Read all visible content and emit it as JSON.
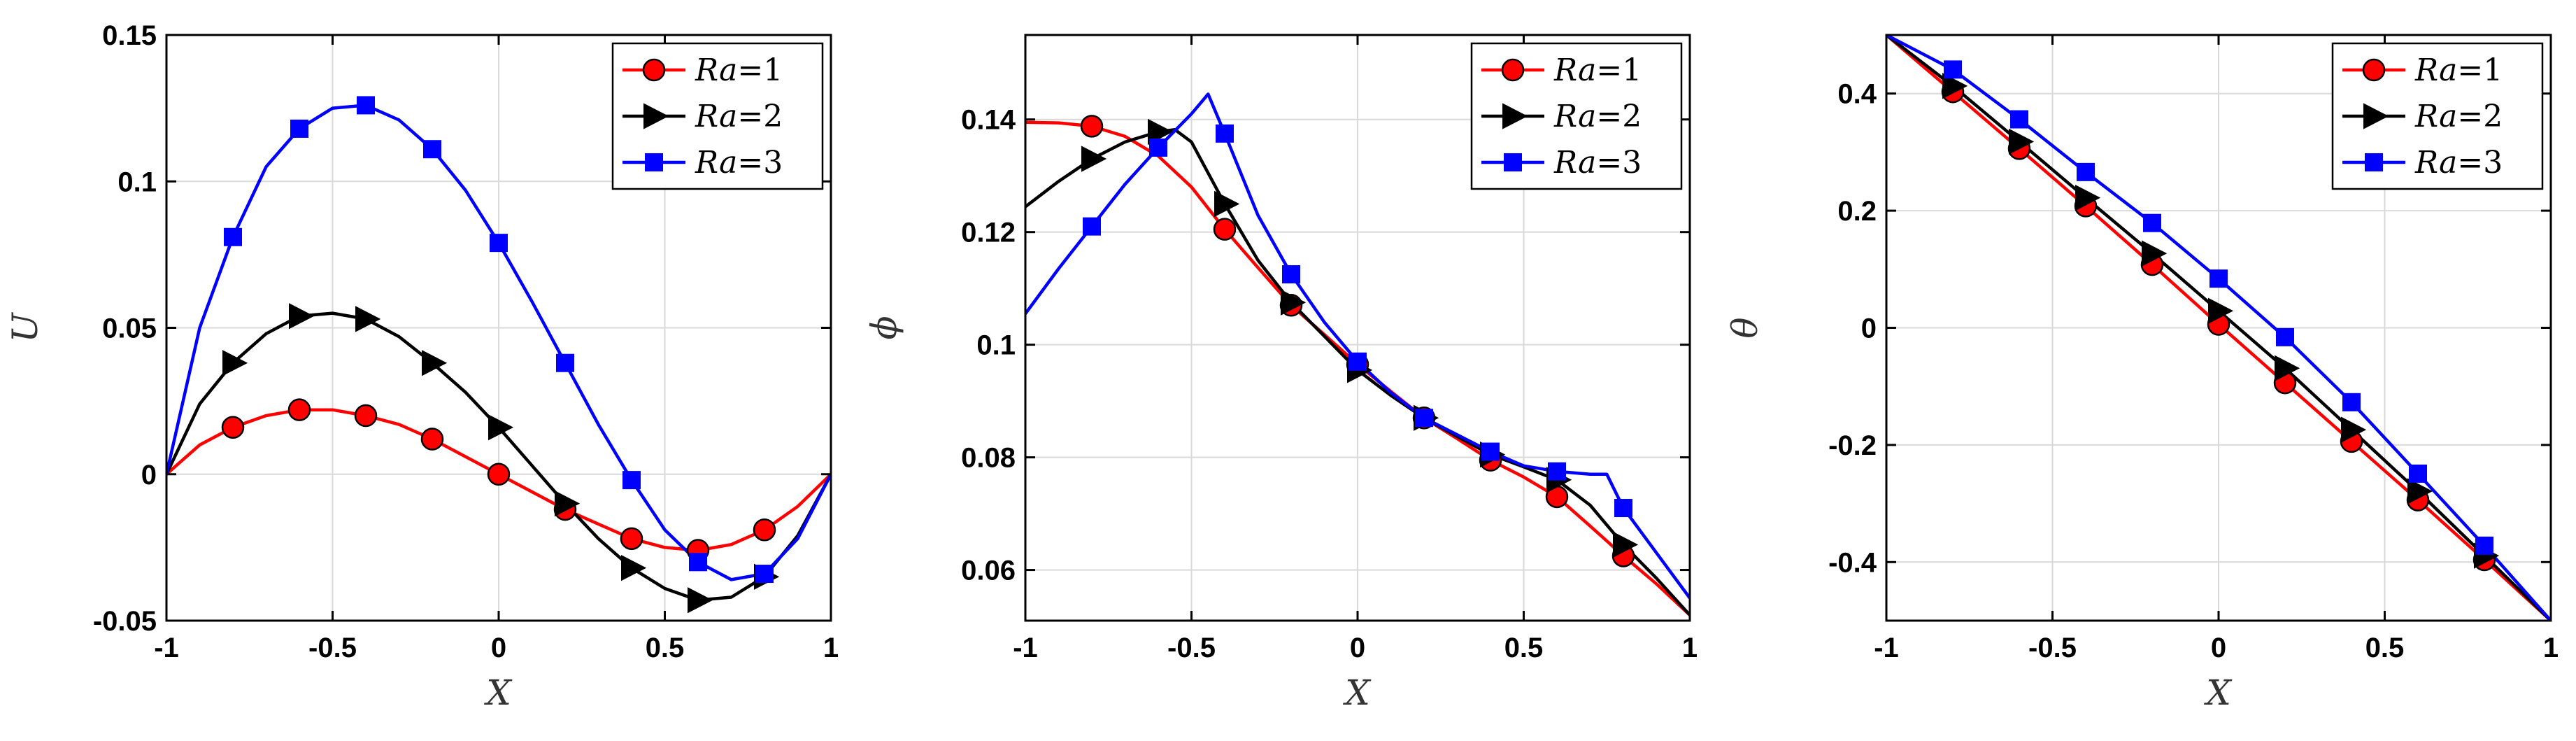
{
  "chart_data": [
    {
      "type": "line",
      "xlabel": "X",
      "ylabel": "U",
      "xlim": [
        -1,
        1
      ],
      "ylim": [
        -0.05,
        0.15
      ],
      "xticks": [
        -1,
        -0.5,
        0,
        0.5,
        1
      ],
      "xtick_labels": [
        "-1",
        "-0.5",
        "0",
        "0.5",
        "1"
      ],
      "yticks": [
        -0.05,
        0,
        0.05,
        0.1,
        0.15
      ],
      "ytick_labels": [
        "-0.05",
        "0",
        "0.05",
        "0.1",
        "0.15"
      ],
      "grid": true,
      "legend_position": "top-right",
      "series": [
        {
          "name": "Ra=1",
          "label_var": "Ra",
          "label_value": "=1",
          "color": "#ff0000",
          "marker": "circle",
          "x": [
            -1,
            -0.9,
            -0.8,
            -0.7,
            -0.6,
            -0.5,
            -0.4,
            -0.3,
            -0.2,
            -0.1,
            0,
            0.1,
            0.2,
            0.3,
            0.4,
            0.5,
            0.6,
            0.7,
            0.8,
            0.9,
            1
          ],
          "y": [
            0,
            0.01,
            0.016,
            0.02,
            0.022,
            0.022,
            0.02,
            0.017,
            0.012,
            0.006,
            0.0,
            -0.006,
            -0.012,
            -0.017,
            -0.022,
            -0.025,
            -0.026,
            -0.024,
            -0.019,
            -0.011,
            0
          ],
          "marker_x": [
            -0.8,
            -0.6,
            -0.4,
            -0.2,
            0,
            0.2,
            0.4,
            0.6,
            0.8
          ],
          "marker_y": [
            0.016,
            0.022,
            0.02,
            0.012,
            0.0,
            -0.012,
            -0.022,
            -0.026,
            -0.019
          ]
        },
        {
          "name": "Ra=2",
          "label_var": "Ra",
          "label_value": "=2",
          "color": "#000000",
          "marker": "triangle-right",
          "x": [
            -1,
            -0.9,
            -0.8,
            -0.7,
            -0.6,
            -0.5,
            -0.4,
            -0.3,
            -0.2,
            -0.1,
            0,
            0.1,
            0.2,
            0.3,
            0.4,
            0.5,
            0.6,
            0.7,
            0.8,
            0.9,
            1
          ],
          "y": [
            0,
            0.024,
            0.038,
            0.048,
            0.054,
            0.055,
            0.053,
            0.047,
            0.038,
            0.028,
            0.016,
            0.003,
            -0.01,
            -0.022,
            -0.032,
            -0.039,
            -0.043,
            -0.042,
            -0.035,
            -0.021,
            0
          ],
          "marker_x": [
            -0.8,
            -0.6,
            -0.4,
            -0.2,
            0,
            0.2,
            0.4,
            0.6,
            0.8
          ],
          "marker_y": [
            0.038,
            0.054,
            0.053,
            0.038,
            0.016,
            -0.01,
            -0.032,
            -0.043,
            -0.035
          ]
        },
        {
          "name": "Ra=3",
          "label_var": "Ra",
          "label_value": "=3",
          "color": "#0000ff",
          "marker": "square",
          "x": [
            -1,
            -0.9,
            -0.8,
            -0.7,
            -0.6,
            -0.5,
            -0.4,
            -0.3,
            -0.2,
            -0.1,
            0,
            0.1,
            0.2,
            0.3,
            0.4,
            0.5,
            0.6,
            0.7,
            0.8,
            0.9,
            1
          ],
          "y": [
            0,
            0.05,
            0.081,
            0.105,
            0.118,
            0.125,
            0.126,
            0.121,
            0.111,
            0.097,
            0.079,
            0.059,
            0.038,
            0.017,
            -0.002,
            -0.019,
            -0.03,
            -0.036,
            -0.034,
            -0.022,
            0
          ],
          "marker_x": [
            -0.8,
            -0.6,
            -0.4,
            -0.2,
            0,
            0.2,
            0.4,
            0.6,
            0.8
          ],
          "marker_y": [
            0.081,
            0.118,
            0.126,
            0.111,
            0.079,
            0.038,
            -0.002,
            -0.03,
            -0.034
          ]
        }
      ]
    },
    {
      "type": "line",
      "xlabel": "X",
      "ylabel": "ϕ",
      "xlim": [
        -1,
        1
      ],
      "ylim": [
        0.051,
        0.155
      ],
      "xticks": [
        -1,
        -0.5,
        0,
        0.5,
        1
      ],
      "xtick_labels": [
        "-1",
        "-0.5",
        "0",
        "0.5",
        "1"
      ],
      "yticks": [
        0.06,
        0.08,
        0.1,
        0.12,
        0.14
      ],
      "ytick_labels": [
        "0.06",
        "0.08",
        "0.1",
        "0.12",
        "0.14"
      ],
      "grid": true,
      "legend_position": "top-right",
      "series": [
        {
          "name": "Ra=1",
          "label_var": "Ra",
          "label_value": "=1",
          "color": "#ff0000",
          "marker": "circle",
          "x": [
            -1,
            -0.9,
            -0.8,
            -0.7,
            -0.6,
            -0.5,
            -0.4,
            -0.3,
            -0.2,
            -0.1,
            0,
            0.1,
            0.2,
            0.3,
            0.4,
            0.5,
            0.6,
            0.7,
            0.8,
            0.9,
            1
          ],
          "y": [
            0.1395,
            0.1394,
            0.1388,
            0.137,
            0.1335,
            0.128,
            0.1205,
            0.1137,
            0.107,
            0.1018,
            0.0965,
            0.0917,
            0.087,
            0.0833,
            0.0795,
            0.0765,
            0.073,
            0.0678,
            0.0625,
            0.0575,
            0.052
          ],
          "marker_x": [
            -0.8,
            -0.4,
            -0.2,
            0,
            0.2,
            0.4,
            0.6,
            0.8
          ],
          "marker_y": [
            0.1388,
            0.1205,
            0.107,
            0.0965,
            0.087,
            0.0795,
            0.073,
            0.0625
          ]
        },
        {
          "name": "Ra=2",
          "label_var": "Ra",
          "label_value": "=2",
          "color": "#000000",
          "marker": "triangle-right",
          "x": [
            -1,
            -0.9,
            -0.8,
            -0.7,
            -0.6,
            -0.55,
            -0.5,
            -0.4,
            -0.3,
            -0.2,
            -0.1,
            0,
            0.1,
            0.2,
            0.3,
            0.4,
            0.5,
            0.6,
            0.7,
            0.8,
            0.9,
            1
          ],
          "y": [
            0.1245,
            0.129,
            0.133,
            0.136,
            0.1378,
            0.1382,
            0.136,
            0.125,
            0.115,
            0.1075,
            0.1015,
            0.0955,
            0.091,
            0.087,
            0.0837,
            0.0805,
            0.0783,
            0.076,
            0.0715,
            0.0645,
            0.0585,
            0.052
          ],
          "marker_x": [
            -0.8,
            -0.6,
            -0.4,
            -0.2,
            0,
            0.2,
            0.4,
            0.6,
            0.8
          ],
          "marker_y": [
            0.133,
            0.1378,
            0.125,
            0.1075,
            0.0955,
            0.087,
            0.0805,
            0.076,
            0.0645
          ]
        },
        {
          "name": "Ra=3",
          "label_var": "Ra",
          "label_value": "=3",
          "color": "#0000ff",
          "marker": "square",
          "x": [
            -1,
            -0.9,
            -0.8,
            -0.7,
            -0.6,
            -0.5,
            -0.45,
            -0.4,
            -0.3,
            -0.2,
            -0.1,
            0,
            0.1,
            0.2,
            0.3,
            0.4,
            0.5,
            0.6,
            0.7,
            0.75,
            0.8,
            0.9,
            1
          ],
          "y": [
            0.1055,
            0.1135,
            0.121,
            0.1285,
            0.135,
            0.141,
            0.1445,
            0.1375,
            0.123,
            0.1125,
            0.104,
            0.097,
            0.0915,
            0.087,
            0.084,
            0.081,
            0.0785,
            0.0775,
            0.077,
            0.077,
            0.071,
            0.063,
            0.055
          ],
          "marker_x": [
            -0.8,
            -0.6,
            -0.4,
            -0.2,
            0,
            0.2,
            0.4,
            0.6,
            0.8
          ],
          "marker_y": [
            0.121,
            0.135,
            0.1375,
            0.1125,
            0.097,
            0.087,
            0.081,
            0.0775,
            0.071
          ]
        }
      ]
    },
    {
      "type": "line",
      "xlabel": "X",
      "ylabel": "θ",
      "xlim": [
        -1,
        1
      ],
      "ylim": [
        -0.5,
        0.5
      ],
      "xticks": [
        -1,
        -0.5,
        0,
        0.5,
        1
      ],
      "xtick_labels": [
        "-1",
        "-0.5",
        "0",
        "0.5",
        "1"
      ],
      "yticks": [
        -0.4,
        -0.2,
        0,
        0.2,
        0.4
      ],
      "ytick_labels": [
        "-0.4",
        "-0.2",
        "0",
        "0.2",
        "0.4"
      ],
      "grid": true,
      "legend_position": "top-right",
      "series": [
        {
          "name": "Ra=1",
          "label_var": "Ra",
          "label_value": "=1",
          "color": "#ff0000",
          "marker": "circle",
          "x": [
            -1,
            -0.8,
            -0.6,
            -0.4,
            -0.2,
            0,
            0.2,
            0.4,
            0.6,
            0.8,
            1
          ],
          "y": [
            0.5,
            0.403,
            0.306,
            0.208,
            0.108,
            0.006,
            -0.094,
            -0.194,
            -0.294,
            -0.396,
            -0.5
          ],
          "marker_x": [
            -0.8,
            -0.6,
            -0.4,
            -0.2,
            0,
            0.2,
            0.4,
            0.6,
            0.8
          ],
          "marker_y": [
            0.403,
            0.306,
            0.208,
            0.108,
            0.006,
            -0.094,
            -0.194,
            -0.294,
            -0.396
          ]
        },
        {
          "name": "Ra=2",
          "label_var": "Ra",
          "label_value": "=2",
          "color": "#000000",
          "marker": "triangle-right",
          "x": [
            -1,
            -0.8,
            -0.6,
            -0.4,
            -0.2,
            0,
            0.2,
            0.4,
            0.6,
            0.8,
            1
          ],
          "y": [
            0.5,
            0.413,
            0.318,
            0.222,
            0.127,
            0.029,
            -0.069,
            -0.174,
            -0.279,
            -0.389,
            -0.5
          ],
          "marker_x": [
            -0.8,
            -0.6,
            -0.4,
            -0.2,
            0,
            0.2,
            0.4,
            0.6,
            0.8
          ],
          "marker_y": [
            0.413,
            0.318,
            0.222,
            0.127,
            0.029,
            -0.069,
            -0.174,
            -0.279,
            -0.389
          ]
        },
        {
          "name": "Ra=3",
          "label_var": "Ra",
          "label_value": "=3",
          "color": "#0000ff",
          "marker": "square",
          "x": [
            -1,
            -0.8,
            -0.6,
            -0.4,
            -0.2,
            0,
            0.2,
            0.4,
            0.6,
            0.8,
            1
          ],
          "y": [
            0.5,
            0.441,
            0.356,
            0.266,
            0.179,
            0.084,
            -0.016,
            -0.127,
            -0.249,
            -0.372,
            -0.5
          ],
          "marker_x": [
            -0.8,
            -0.6,
            -0.4,
            -0.2,
            0,
            0.2,
            0.4,
            0.6,
            0.8
          ],
          "marker_y": [
            0.441,
            0.356,
            0.266,
            0.179,
            0.084,
            -0.016,
            -0.127,
            -0.249,
            -0.372
          ]
        }
      ]
    }
  ]
}
